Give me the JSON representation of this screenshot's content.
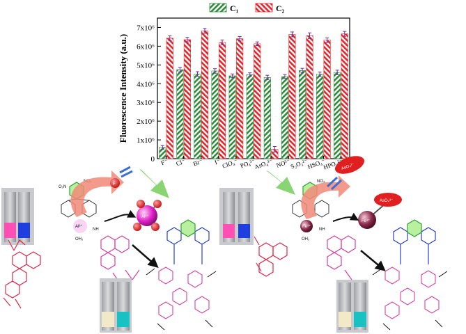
{
  "chart_data": {
    "type": "bar",
    "title": "",
    "xlabel": "",
    "ylabel": "Fluorescence Intensity (a.u.)",
    "ylim": [
      0,
      7500000
    ],
    "yticks": [
      {
        "value": 0,
        "label": "0"
      },
      {
        "value": 1000000,
        "label": "1x10⁶"
      },
      {
        "value": 2000000,
        "label": "2x10⁶"
      },
      {
        "value": 3000000,
        "label": "3x10⁶"
      },
      {
        "value": 4000000,
        "label": "4x10⁶"
      },
      {
        "value": 5000000,
        "label": "5x10⁶"
      },
      {
        "value": 6000000,
        "label": "6x10⁶"
      },
      {
        "value": 7000000,
        "label": "7x10⁶"
      }
    ],
    "categories": [
      "F⁻",
      "Cl⁻",
      "Br⁻",
      "I⁻",
      "ClO₄⁻",
      "PO₄³⁻",
      "AsO₄³⁻",
      "NO³⁻",
      "S₂O₃²⁻",
      "HSO₄⁻",
      "HPO₄²⁻"
    ],
    "series": [
      {
        "name": "C₁",
        "color": "#2e8b3a",
        "pattern": "green-hatch",
        "values": [
          600000,
          4750000,
          4520000,
          4680000,
          4420000,
          4480000,
          4330000,
          4380000,
          4700000,
          4500000,
          4600000
        ],
        "errors": [
          100000,
          120000,
          120000,
          120000,
          100000,
          100000,
          120000,
          100000,
          120000,
          120000,
          120000
        ]
      },
      {
        "name": "C₂",
        "color": "#e3262b",
        "pattern": "red-hatch",
        "values": [
          6430000,
          6350000,
          6820000,
          6200000,
          6400000,
          6130000,
          500000,
          6630000,
          6560000,
          6320000,
          6660000
        ],
        "errors": [
          120000,
          120000,
          130000,
          130000,
          120000,
          100000,
          150000,
          130000,
          150000,
          120000,
          130000
        ]
      }
    ],
    "legend_position": "top",
    "grid": false
  },
  "scheme": {
    "labels": {
      "al": "Al³⁺",
      "fe": "Fe³⁺",
      "aso4": "AsO₄³⁻",
      "fe_aso4": "AsO₄³⁻",
      "fluoride": "F",
      "oh2_left": "OH₂",
      "oh2_right": "OH₂",
      "nh_left": "NH",
      "nh_right": "NH",
      "al_complex": "Al³⁺",
      "fe_complex": "Fe³⁺",
      "no2": "NO₂",
      "o2n": "O₂N"
    },
    "colors": {
      "pink_solution": "#ff4fb5",
      "blue_solution": "#1e3fe0",
      "pale_yellow_solution": "#f2e9c8",
      "teal_solution": "#18c2c2",
      "rhodamine_red": "#e0284a",
      "rhodamine_pink": "#d63fa0",
      "linker_blue": "#1430c8",
      "nitro_green": "#2fa02f",
      "arrow_green": "#7ccf64",
      "arrow_salmon": "#f08a78",
      "fluoride_red": "#e02020",
      "al_magenta": "#e01fc8",
      "fe_maroon": "#8a2848"
    }
  }
}
